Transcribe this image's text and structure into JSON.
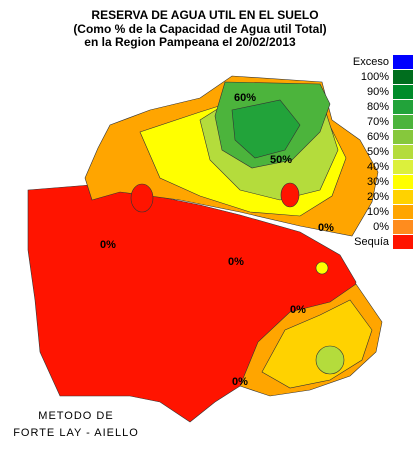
{
  "header": {
    "title": "RESERVA DE AGUA UTIL EN EL SUELO",
    "subtitle": "(Como %  de la Capacidad de  Agua util Total)",
    "subtitle2": "en la Region Pampeana el 20/02/2013"
  },
  "legend": {
    "items": [
      {
        "label": "Exceso",
        "color": "#0000ff"
      },
      {
        "label": "100%",
        "color": "#006e1e"
      },
      {
        "label": "90%",
        "color": "#008c2a"
      },
      {
        "label": "80%",
        "color": "#22a33a"
      },
      {
        "label": "70%",
        "color": "#4cb43c"
      },
      {
        "label": "60%",
        "color": "#86c83c"
      },
      {
        "label": "50%",
        "color": "#b4dc3c"
      },
      {
        "label": "40%",
        "color": "#dcf03c"
      },
      {
        "label": "30%",
        "color": "#ffff00"
      },
      {
        "label": "20%",
        "color": "#ffd200"
      },
      {
        "label": "10%",
        "color": "#ffa500"
      },
      {
        "label": "0%",
        "color": "#ff8c1e"
      },
      {
        "label": "Sequía",
        "color": "#ff1400"
      }
    ]
  },
  "map": {
    "contour_labels": [
      "60%",
      "50%",
      "0%",
      "0%",
      "0%",
      "0%",
      "0%"
    ]
  },
  "footer": {
    "line1": "METODO DE",
    "line2": "FORTE LAY - AIELLO"
  }
}
